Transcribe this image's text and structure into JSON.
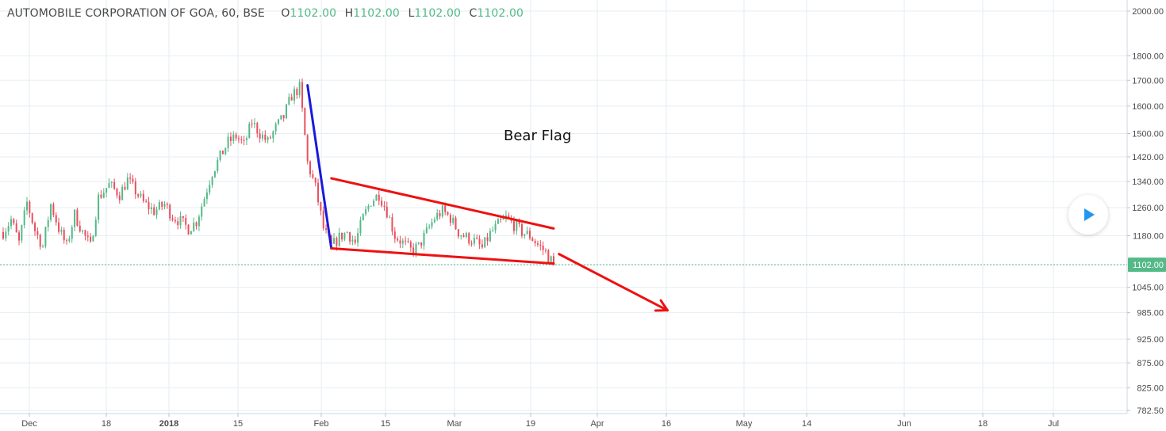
{
  "header": {
    "symbol": "AUTOMOBILE CORPORATION OF GOA, 60, BSE",
    "o_label": "O",
    "o_value": "1102.00",
    "h_label": "H",
    "h_value": "1102.00",
    "l_label": "L",
    "l_value": "1102.00",
    "c_label": "C",
    "c_value": "1102.00"
  },
  "annotation": {
    "text": "Bear Flag"
  },
  "play_button": {
    "icon": "play-icon"
  },
  "colors": {
    "up": "#53b987",
    "down": "#eb4d5c",
    "pole": "#1a1adb",
    "flag": "#ee1111",
    "grid": "#e6eef3",
    "axis_text": "#4a4a4a",
    "price_tag": "#53b987"
  },
  "chart_data": {
    "type": "candlestick",
    "log_scale": true,
    "grid": true,
    "ylim": [
      782.5,
      2000
    ],
    "current_price": 1102.0,
    "y_ticks": [
      "782.50",
      "825.00",
      "875.00",
      "925.00",
      "985.00",
      "1045.00",
      "1102.00",
      "1180.00",
      "1260.00",
      "1340.00",
      "1420.00",
      "1500.00",
      "1600.00",
      "1700.00",
      "1800.00",
      "2000.00"
    ],
    "x_ticks": [
      "Dec",
      "18",
      "2018",
      "15",
      "Feb",
      "15",
      "Mar",
      "19",
      "Apr",
      "16",
      "May",
      "14",
      "Jun",
      "18",
      "Jul"
    ],
    "price_path": [
      [
        0,
        1190
      ],
      [
        3,
        1225
      ],
      [
        6,
        1160
      ],
      [
        9,
        1275
      ],
      [
        12,
        1195
      ],
      [
        15,
        1150
      ],
      [
        18,
        1270
      ],
      [
        21,
        1200
      ],
      [
        24,
        1150
      ],
      [
        27,
        1240
      ],
      [
        30,
        1190
      ],
      [
        33,
        1150
      ],
      [
        36,
        1290
      ],
      [
        40,
        1330
      ],
      [
        44,
        1300
      ],
      [
        47,
        1345
      ],
      [
        50,
        1310
      ],
      [
        53,
        1275
      ],
      [
        57,
        1250
      ],
      [
        61,
        1270
      ],
      [
        64,
        1235
      ],
      [
        67,
        1220
      ],
      [
        70,
        1200
      ],
      [
        73,
        1220
      ],
      [
        76,
        1290
      ],
      [
        79,
        1370
      ],
      [
        82,
        1420
      ],
      [
        85,
        1470
      ],
      [
        88,
        1490
      ],
      [
        91,
        1460
      ],
      [
        94,
        1540
      ],
      [
        97,
        1500
      ],
      [
        100,
        1470
      ],
      [
        103,
        1520
      ],
      [
        106,
        1560
      ],
      [
        109,
        1640
      ],
      [
        112,
        1670
      ],
      [
        115,
        1400
      ],
      [
        118,
        1320
      ],
      [
        121,
        1200
      ],
      [
        124,
        1150
      ],
      [
        127,
        1175
      ],
      [
        130,
        1190
      ],
      [
        133,
        1160
      ],
      [
        136,
        1230
      ],
      [
        139,
        1280
      ],
      [
        142,
        1300
      ],
      [
        145,
        1250
      ],
      [
        148,
        1180
      ],
      [
        151,
        1160
      ],
      [
        154,
        1140
      ],
      [
        157,
        1150
      ],
      [
        160,
        1190
      ],
      [
        163,
        1230
      ],
      [
        166,
        1250
      ],
      [
        169,
        1230
      ],
      [
        172,
        1190
      ],
      [
        175,
        1175
      ],
      [
        178,
        1165
      ],
      [
        181,
        1145
      ],
      [
        184,
        1185
      ],
      [
        187,
        1210
      ],
      [
        190,
        1230
      ],
      [
        193,
        1210
      ],
      [
        196,
        1190
      ],
      [
        199,
        1180
      ],
      [
        202,
        1155
      ],
      [
        205,
        1135
      ],
      [
        208,
        1102
      ]
    ],
    "annotations": {
      "flagpole": [
        [
          115,
          1680
        ],
        [
          124,
          1145
        ]
      ],
      "flag_upper": [
        [
          124,
          1350
        ],
        [
          208,
          1200
        ]
      ],
      "flag_lower": [
        [
          124,
          1145
        ],
        [
          208,
          1105
        ]
      ],
      "target_arrow": [
        [
          210,
          1130
        ],
        [
          251,
          990
        ]
      ]
    }
  }
}
